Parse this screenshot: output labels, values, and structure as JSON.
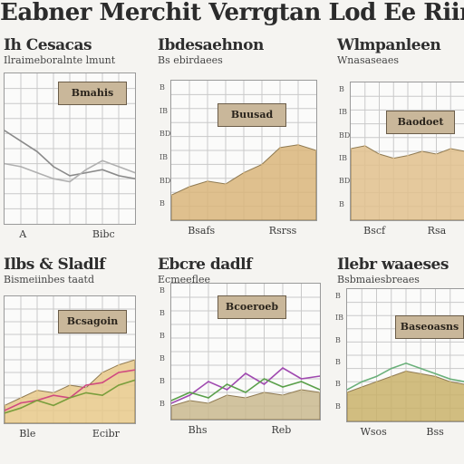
{
  "page": {
    "title": "Eabner Merchit Verrgtan Lod Ee Riimtin Ler"
  },
  "chart_data": [
    {
      "type": "line",
      "title": "Ih Cesacas",
      "subtitle": "Ilraimeboralnte lmunt",
      "label_box": "Bmahis",
      "x_labels": [
        "A",
        "Bibc"
      ],
      "y_ticks": [],
      "x": [
        0,
        1,
        2,
        3,
        4,
        5,
        6,
        7,
        8
      ],
      "series": [
        {
          "values": [
            62,
            55,
            48,
            38,
            32,
            34,
            36,
            32,
            30
          ],
          "color": "#8a8a8a"
        },
        {
          "values": [
            40,
            38,
            34,
            30,
            28,
            36,
            42,
            38,
            34
          ],
          "color": "#b0b0b0"
        }
      ],
      "ylim": [
        0,
        100
      ],
      "fill": false
    },
    {
      "type": "area",
      "title": "Ibdesaehnon",
      "subtitle": "Bs ebirdaees",
      "label_box": "Buusad",
      "x_labels": [
        "Bsafs",
        "Rsrss"
      ],
      "y_ticks": [
        "B",
        "IB",
        "BD",
        "IB",
        "BD",
        "B"
      ],
      "x": [
        0,
        1,
        2,
        3,
        4,
        5,
        6,
        7,
        8
      ],
      "series": [
        {
          "values": [
            18,
            24,
            28,
            26,
            34,
            40,
            52,
            54,
            50
          ],
          "color": "#d9b57a"
        }
      ],
      "ylim": [
        0,
        100
      ],
      "fill": true
    },
    {
      "type": "area",
      "title": "Wlmpanleen",
      "subtitle": "Wnasaseaes",
      "label_box": "Baodoet",
      "x_labels": [
        "Bscf",
        "Rsa"
      ],
      "y_ticks": [
        "B",
        "IB",
        "BD",
        "IB",
        "BD",
        "B"
      ],
      "x": [
        0,
        1,
        2,
        3,
        4,
        5,
        6,
        7,
        8
      ],
      "series": [
        {
          "values": [
            52,
            54,
            48,
            45,
            47,
            50,
            48,
            52,
            50
          ],
          "color": "#e0bf8c"
        }
      ],
      "ylim": [
        0,
        100
      ],
      "fill": true
    },
    {
      "type": "line",
      "title": "Ilbs & Sladlf",
      "subtitle": "Bismeiinbes taatd",
      "label_box": "Bcsagoin",
      "x_labels": [
        "Ble",
        "Ecibr"
      ],
      "y_ticks": [],
      "x": [
        0,
        1,
        2,
        3,
        4,
        5,
        6,
        7,
        8
      ],
      "series": [
        {
          "values": [
            14,
            20,
            26,
            24,
            30,
            28,
            40,
            46,
            50
          ],
          "color": "#e8c98a",
          "fill": true
        },
        {
          "values": [
            10,
            16,
            18,
            22,
            20,
            30,
            32,
            40,
            42
          ],
          "color": "#d04a80"
        },
        {
          "values": [
            8,
            12,
            18,
            14,
            20,
            24,
            22,
            30,
            34
          ],
          "color": "#7a9e3c"
        }
      ],
      "ylim": [
        0,
        100
      ],
      "fill": false
    },
    {
      "type": "line",
      "title": "Ebcre dadlf",
      "subtitle": "Ecmeeflee",
      "label_box": "Bcoeroeb",
      "x_labels": [
        "Bhs",
        "Reb"
      ],
      "y_ticks": [
        "B",
        "B",
        "B",
        "B",
        "B",
        "B"
      ],
      "x": [
        0,
        1,
        2,
        3,
        4,
        5,
        6,
        7,
        8
      ],
      "series": [
        {
          "values": [
            10,
            14,
            12,
            18,
            16,
            20,
            18,
            22,
            20
          ],
          "color": "#c9b88e",
          "fill": true
        },
        {
          "values": [
            12,
            18,
            28,
            22,
            34,
            26,
            38,
            30,
            32
          ],
          "color": "#a04ab0"
        },
        {
          "values": [
            14,
            20,
            16,
            26,
            20,
            30,
            24,
            28,
            22
          ],
          "color": "#5aa04a"
        }
      ],
      "ylim": [
        0,
        100
      ],
      "fill": false
    },
    {
      "type": "area",
      "title": "Ilebr waaeses",
      "subtitle": "Bsbmaiesbreaes",
      "label_box": "Baseoasns",
      "x_labels": [
        "Wsos",
        "Bss"
      ],
      "y_ticks": [
        "B",
        "IB",
        "B",
        "B",
        "B",
        "B"
      ],
      "x": [
        0,
        1,
        2,
        3,
        4,
        5,
        6,
        7,
        8
      ],
      "series": [
        {
          "values": [
            22,
            26,
            30,
            34,
            38,
            36,
            34,
            30,
            28
          ],
          "color": "#c9b26a"
        },
        {
          "values": [
            24,
            30,
            34,
            40,
            44,
            40,
            36,
            32,
            30
          ],
          "color": "#6ab07a",
          "line_only": true
        }
      ],
      "ylim": [
        0,
        100
      ],
      "fill": true
    }
  ]
}
